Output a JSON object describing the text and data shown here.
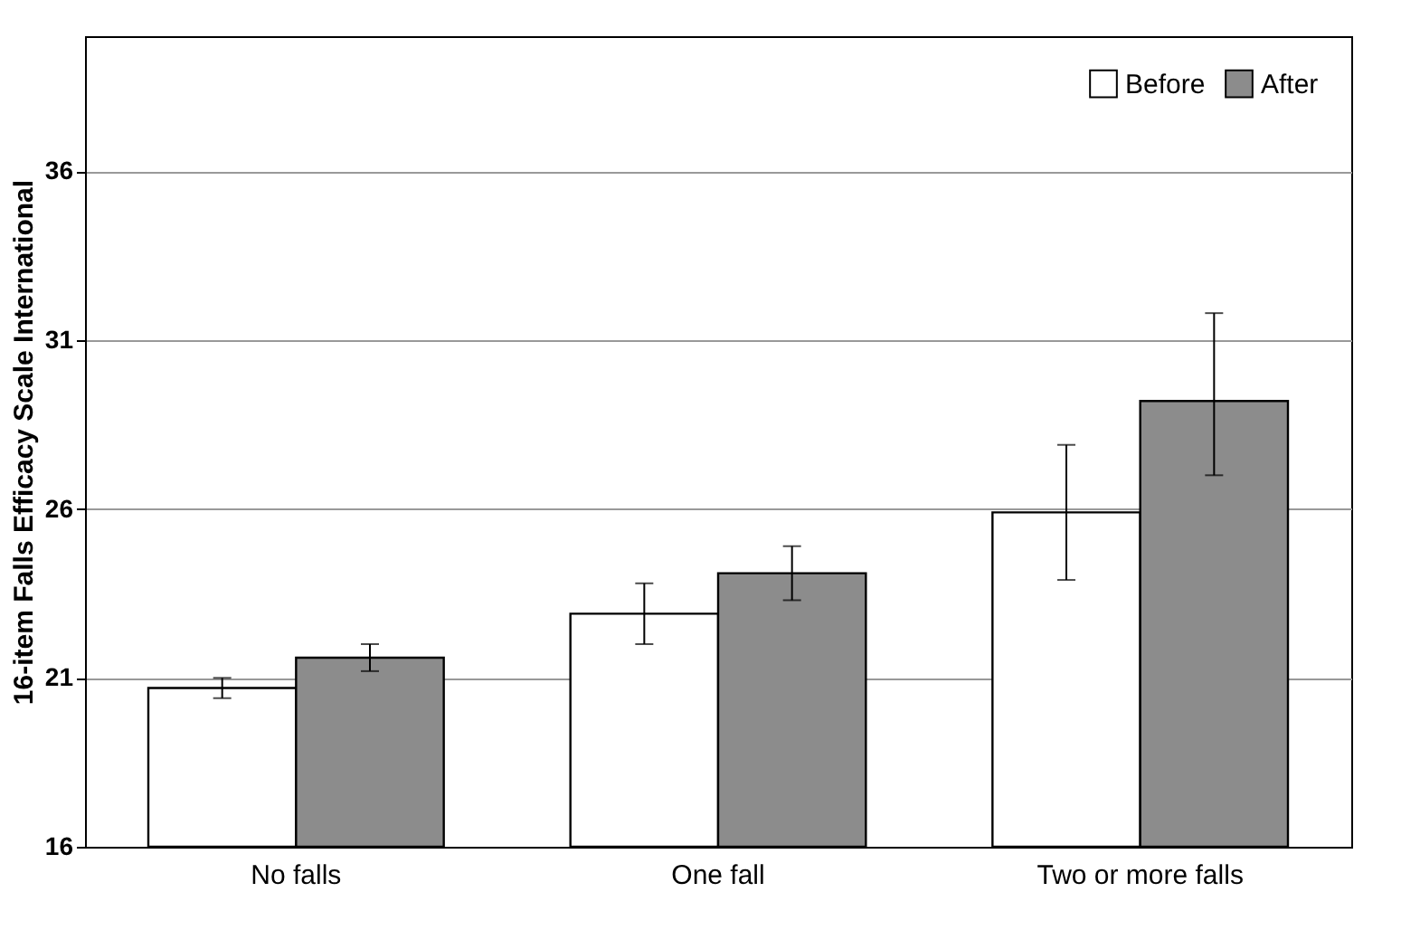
{
  "chart_data": {
    "type": "bar",
    "ylabel": "16-item Falls Efficacy Scale International",
    "categories": [
      "No falls",
      "One fall",
      "Two or more falls"
    ],
    "series": [
      {
        "name": "Before",
        "color": "#ffffff",
        "values": [
          20.7,
          22.9,
          25.9
        ],
        "errors": [
          [
            20.4,
            21.0
          ],
          [
            22.0,
            23.8
          ],
          [
            23.9,
            27.9
          ]
        ]
      },
      {
        "name": "After",
        "color": "#8c8c8c",
        "values": [
          21.6,
          24.1,
          29.2
        ],
        "errors": [
          [
            21.2,
            22.0
          ],
          [
            23.3,
            24.9
          ],
          [
            27.0,
            31.8
          ]
        ]
      }
    ],
    "ylim": [
      16,
      40
    ],
    "yticks": [
      16,
      21,
      26,
      31,
      36
    ],
    "grid": "y",
    "legend": "top right"
  }
}
